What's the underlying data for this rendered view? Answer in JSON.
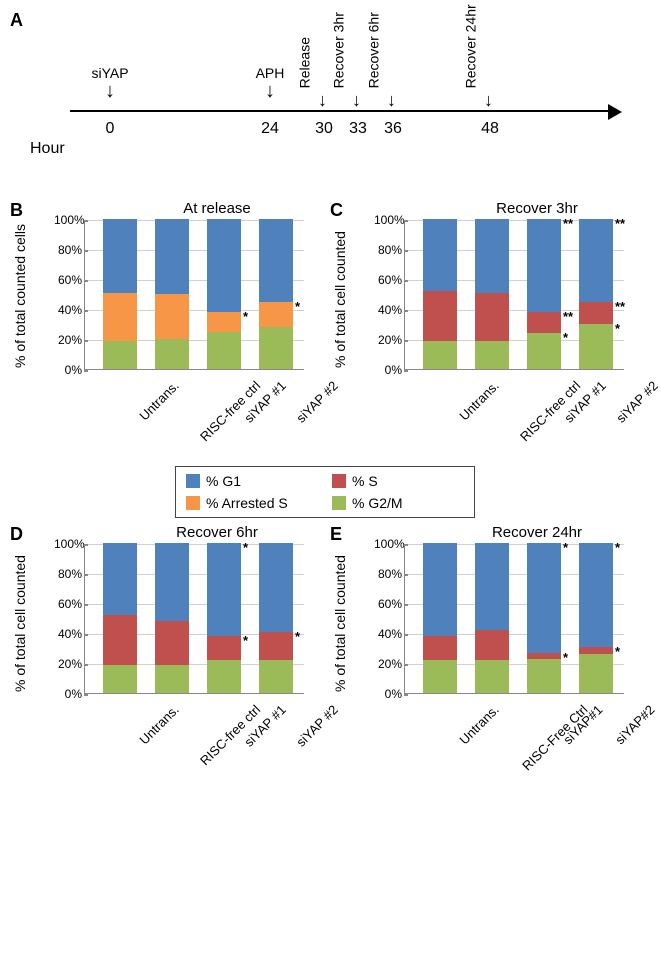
{
  "colors": {
    "G1": "#4f81bd",
    "S": "#c0504d",
    "ArrestedS": "#f79646",
    "G2M": "#9bbb59",
    "grid": "#d0d0d0",
    "axis": "#888888",
    "bg": "#ffffff"
  },
  "panelA": {
    "label": "A",
    "hourLabel": "Hour",
    "events": [
      {
        "label": "siYAP",
        "x": 100,
        "hour": "0",
        "rotate": false
      },
      {
        "label": "APH",
        "x": 260,
        "hour": "24",
        "rotate": false
      },
      {
        "label": "Release",
        "x": 314,
        "hour": "30",
        "rotate": true
      },
      {
        "label": "Recover 3hr",
        "x": 348,
        "hour": "33",
        "rotate": true
      },
      {
        "label": "Recover 6hr",
        "x": 383,
        "hour": "36",
        "rotate": true
      },
      {
        "label": "Recover 24hr",
        "x": 480,
        "hour": "48",
        "rotate": true
      }
    ]
  },
  "legend": {
    "items": [
      {
        "key": "G1",
        "label": "% G1"
      },
      {
        "key": "S",
        "label": "% S"
      },
      {
        "key": "ArrestedS",
        "label": "% Arrested S"
      },
      {
        "key": "G2M",
        "label": "% G2/M"
      }
    ]
  },
  "chartCommon": {
    "ylim": [
      0,
      100
    ],
    "yticks": [
      0,
      20,
      40,
      60,
      80,
      100
    ],
    "ytickLabels": [
      "0%",
      "20%",
      "40%",
      "60%",
      "80%",
      "100%"
    ],
    "categories": [
      "Untrans.",
      "RISC-free ctrl",
      "siYAP #1",
      "siYAP #2"
    ],
    "barWidthPx": 34,
    "barGapPx": 18,
    "barStartPx": 18,
    "fontsize_axis": 12,
    "fontsize_title": 15,
    "fontsize_ylabel": 14
  },
  "panels": {
    "B": {
      "label": "B",
      "title": "At release",
      "ylabel": "% of total counted cells",
      "categories": [
        "Untrans.",
        "RISC-free ctrl",
        "siYAP #1",
        "siYAP #2"
      ],
      "series": [
        "G2M",
        "ArrestedS",
        "G1"
      ],
      "data": [
        {
          "G2M": 19,
          "ArrestedS": 32,
          "G1": 49,
          "stars": {}
        },
        {
          "G2M": 20,
          "ArrestedS": 30,
          "G1": 50,
          "stars": {}
        },
        {
          "G2M": 25,
          "ArrestedS": 13,
          "G1": 62,
          "stars": {
            "ArrestedS": "*"
          }
        },
        {
          "G2M": 28,
          "ArrestedS": 17,
          "G1": 55,
          "stars": {
            "ArrestedS": "*"
          }
        }
      ]
    },
    "C": {
      "label": "C",
      "title": "Recover 3hr",
      "ylabel": "% of total cell counted",
      "categories": [
        "Untrans.",
        "RISC-free ctrl",
        "siYAP #1",
        "siYAP #2"
      ],
      "series": [
        "G2M",
        "S",
        "G1"
      ],
      "data": [
        {
          "G2M": 19,
          "S": 33,
          "G1": 48,
          "stars": {}
        },
        {
          "G2M": 19,
          "S": 32,
          "G1": 49,
          "stars": {}
        },
        {
          "G2M": 24,
          "S": 14,
          "G1": 62,
          "stars": {
            "G2M": "*",
            "S": "**",
            "G1": "**"
          }
        },
        {
          "G2M": 30,
          "S": 15,
          "G1": 55,
          "stars": {
            "G2M": "*",
            "S": "**",
            "G1": "**"
          }
        }
      ]
    },
    "D": {
      "label": "D",
      "title": "Recover 6hr",
      "ylabel": "% of total cell counted",
      "categories": [
        "Untrans.",
        "RISC-free ctrl",
        "siYAP #1",
        "siYAP #2"
      ],
      "series": [
        "G2M",
        "S",
        "G1"
      ],
      "data": [
        {
          "G2M": 19,
          "S": 33,
          "G1": 48,
          "stars": {}
        },
        {
          "G2M": 19,
          "S": 29,
          "G1": 52,
          "stars": {}
        },
        {
          "G2M": 22,
          "S": 16,
          "G1": 62,
          "stars": {
            "S": "*",
            "G1": "*"
          }
        },
        {
          "G2M": 22,
          "S": 19,
          "G1": 59,
          "stars": {
            "S": "*"
          }
        }
      ]
    },
    "E": {
      "label": "E",
      "title": "Recover 24hr",
      "ylabel": "% of total cell counted",
      "categories": [
        "Untrans.",
        "RISC-Free Ctrl",
        "siYAP#1",
        "siYAP#2"
      ],
      "series": [
        "G2M",
        "S",
        "G1"
      ],
      "data": [
        {
          "G2M": 22,
          "S": 16,
          "G1": 62,
          "stars": {}
        },
        {
          "G2M": 22,
          "S": 20,
          "G1": 58,
          "stars": {}
        },
        {
          "G2M": 23,
          "S": 4,
          "G1": 73,
          "stars": {
            "S": "*",
            "G1": "*"
          }
        },
        {
          "G2M": 26,
          "S": 5,
          "G1": 69,
          "stars": {
            "S": "*",
            "G1": "*"
          }
        }
      ]
    }
  }
}
